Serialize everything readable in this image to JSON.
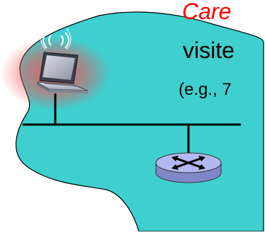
{
  "colors": {
    "network_cloud": "#3fcfcf",
    "cloud_outline": "#000000",
    "care_text": "#ff0000",
    "body_text": "#000000",
    "wifi_glow": "#ff4a4a",
    "router_body": "#b3b8f0"
  },
  "icons": {
    "laptop": "wireless-laptop-icon",
    "router": "router-icon"
  },
  "labels": {
    "care": "Care",
    "visited": "visite",
    "example": "(e.g., 7"
  }
}
